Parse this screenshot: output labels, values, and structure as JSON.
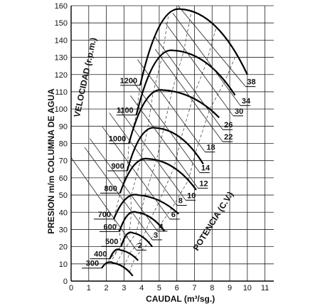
{
  "chart_data": {
    "type": "line",
    "xlabel": "CAUDAL (m³/sg.)",
    "ylabel": "PRESION m/m COLUMNA DE AGUA",
    "xlim": [
      0,
      11.5
    ],
    "ylim": [
      0,
      160
    ],
    "xticks": [
      0,
      1,
      2,
      3,
      4,
      5,
      6,
      7,
      8,
      9,
      10,
      11
    ],
    "yticks": [
      0,
      10,
      20,
      30,
      40,
      50,
      60,
      70,
      80,
      90,
      100,
      110,
      120,
      130,
      140,
      150,
      160
    ],
    "grid": true,
    "annotations": [
      {
        "text": "VELOCIDAD (r.p.m.)"
      },
      {
        "text": "POTENCIA (C.V.)"
      }
    ],
    "speed_curves": [
      {
        "label": "300",
        "peak_x": 2.4,
        "peak_y": 10.5,
        "end_x": 3.5,
        "end_y": 3
      },
      {
        "label": "400",
        "peak_x": 2.8,
        "peak_y": 18,
        "end_x": 3.8,
        "end_y": 12
      },
      {
        "label": "500",
        "peak_x": 3.5,
        "peak_y": 28,
        "end_x": 4.6,
        "end_y": 20
      },
      {
        "label": "600",
        "peak_x": 3.7,
        "peak_y": 40,
        "end_x": 5.3,
        "end_y": 29
      },
      {
        "label": "700",
        "peak_x": 3.8,
        "peak_y": 50,
        "end_x": 6.1,
        "end_y": 39
      },
      {
        "label": "800",
        "peak_x": 4.4,
        "peak_y": 71,
        "end_x": 7.1,
        "end_y": 53
      },
      {
        "label": "900",
        "peak_x": 4.8,
        "peak_y": 89,
        "end_x": 7.5,
        "end_y": 68
      },
      {
        "label": "1000",
        "peak_x": 5.2,
        "peak_y": 111,
        "end_x": 8.4,
        "end_y": 95
      },
      {
        "label": "1100",
        "peak_x": 5.8,
        "peak_y": 134,
        "end_x": 9.3,
        "end_y": 108
      },
      {
        "label": "1200",
        "peak_x": 6.2,
        "peak_y": 158,
        "end_x": 10.0,
        "end_y": 120
      }
    ],
    "power_labels": [
      {
        "label": "2",
        "x": 3.7,
        "y": 18
      },
      {
        "label": "3",
        "x": 4.6,
        "y": 24
      },
      {
        "label": "4",
        "x": 4.9,
        "y": 29
      },
      {
        "label": "6",
        "x": 5.6,
        "y": 36
      },
      {
        "label": "8",
        "x": 6.0,
        "y": 44
      },
      {
        "label": "10",
        "x": 6.5,
        "y": 47
      },
      {
        "label": "12",
        "x": 7.2,
        "y": 54
      },
      {
        "label": "14",
        "x": 7.3,
        "y": 63
      },
      {
        "label": "18",
        "x": 7.6,
        "y": 75
      },
      {
        "label": "22",
        "x": 8.6,
        "y": 81
      },
      {
        "label": "26",
        "x": 8.6,
        "y": 88
      },
      {
        "label": "30",
        "x": 9.2,
        "y": 96
      },
      {
        "label": "34",
        "x": 9.6,
        "y": 102
      },
      {
        "label": "38",
        "x": 9.9,
        "y": 113
      }
    ]
  }
}
